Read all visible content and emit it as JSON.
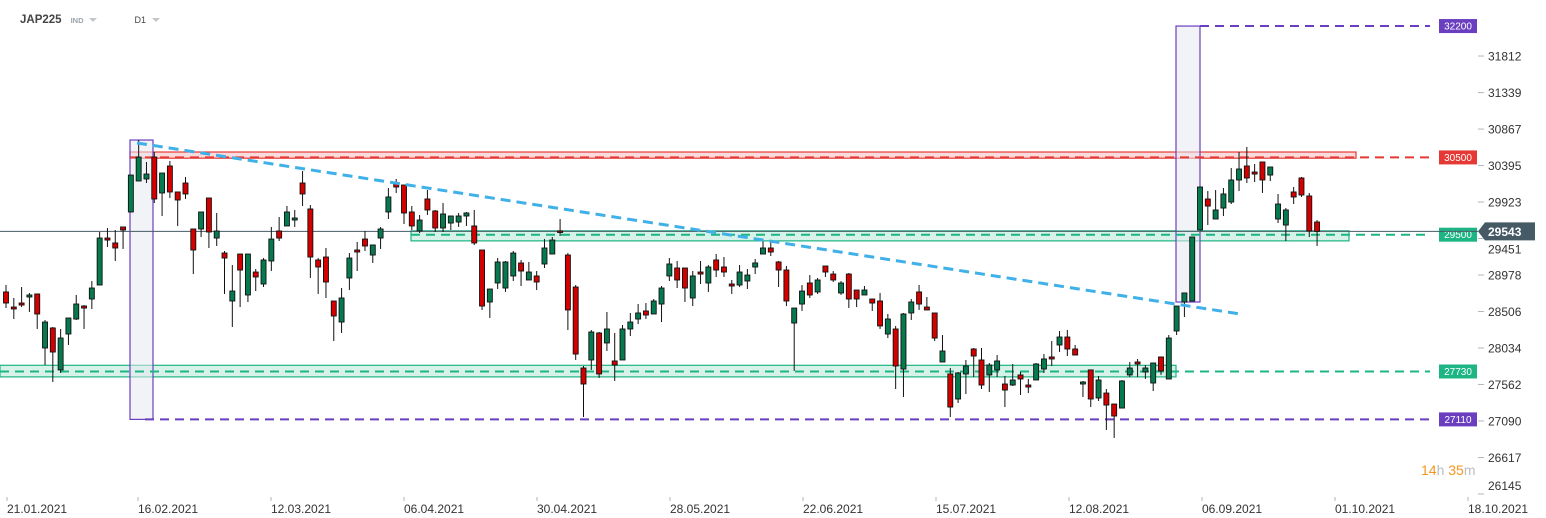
{
  "header": {
    "symbol": "JAP225",
    "instrument_type": "IND",
    "timeframe": "D1"
  },
  "countdown": {
    "hours": "14",
    "hours_unit": "h",
    "minutes": "35",
    "minutes_unit": "m"
  },
  "colors": {
    "up": "#067a4f",
    "down": "#d40000",
    "level_red": "#e53935",
    "level_green": "#1db584",
    "level_purple": "#6a3fbf",
    "trendline": "#3fb0e8",
    "current_price_bg": "#455a64"
  },
  "chart_data": {
    "type": "candlestick",
    "ylim": [
      26000,
      32300
    ],
    "y_ticks": [
      "31812",
      "31339",
      "30867",
      "30395",
      "29923",
      "29451",
      "28978",
      "28506",
      "28034",
      "27562",
      "27090",
      "26617",
      "26145"
    ],
    "x_ticks": [
      "21.01.2021",
      "16.02.2021",
      "12.03.2021",
      "06.04.2021",
      "30.04.2021",
      "28.05.2021",
      "22.06.2021",
      "15.07.2021",
      "12.08.2021",
      "06.09.2021",
      "01.10.2021",
      "18.10.2021"
    ],
    "current_price": "29543",
    "levels": [
      {
        "value": 32200,
        "label": "32200",
        "color": "#6a3fbf"
      },
      {
        "value": 30500,
        "label": "30500",
        "color": "#e53935"
      },
      {
        "value": 29500,
        "label": "29500",
        "color": "#1db584"
      },
      {
        "value": 27730,
        "label": "27730",
        "color": "#1db584"
      },
      {
        "value": 27110,
        "label": "27110",
        "color": "#6a3fbf"
      }
    ],
    "zones": [
      {
        "from": 30490,
        "to": 30570,
        "color": "#e53935"
      },
      {
        "from": 29420,
        "to": 29550,
        "color": "#1db584"
      },
      {
        "from": 27660,
        "to": 27810,
        "color": "#1db584"
      }
    ],
    "ranges": [
      {
        "high": 30725,
        "low": 27110
      },
      {
        "high": 32200,
        "low": 28629
      }
    ],
    "trendline": {
      "start": 30687,
      "end": 28474
    },
    "ohlc": [
      [
        28759,
        28849,
        28551,
        28616
      ],
      [
        28564,
        28681,
        28409,
        28539
      ],
      [
        28616,
        28823,
        28564,
        28590
      ],
      [
        28694,
        28746,
        28500,
        28720
      ],
      [
        28733,
        28733,
        28280,
        28474
      ],
      [
        28034,
        28396,
        27814,
        28370
      ],
      [
        28293,
        28306,
        27594,
        27982
      ],
      [
        27750,
        28280,
        27711,
        28163
      ],
      [
        28215,
        28422,
        28073,
        28422
      ],
      [
        28409,
        28720,
        28396,
        28603
      ],
      [
        28577,
        28590,
        28280,
        28551
      ],
      [
        28668,
        28901,
        28539,
        28810
      ],
      [
        28849,
        29535,
        28849,
        29457
      ],
      [
        29457,
        29587,
        29341,
        29431
      ],
      [
        29393,
        29561,
        29160,
        29328
      ],
      [
        29600,
        29600,
        29315,
        29561
      ],
      [
        29794,
        30272,
        29794,
        30272
      ],
      [
        30195,
        30725,
        30195,
        30505
      ],
      [
        30221,
        30441,
        30169,
        30285
      ],
      [
        30505,
        30570,
        29910,
        29962
      ],
      [
        30040,
        30298,
        29742,
        30298
      ],
      [
        30389,
        30454,
        29975,
        30053
      ],
      [
        30053,
        30053,
        29613,
        29949
      ],
      [
        30169,
        30247,
        29962,
        30027
      ],
      [
        29574,
        29574,
        28991,
        29302
      ],
      [
        29574,
        29794,
        29470,
        29794
      ],
      [
        29975,
        29975,
        29328,
        29535
      ],
      [
        29457,
        29781,
        29354,
        29548
      ],
      [
        29263,
        29289,
        28733,
        29198
      ],
      [
        28642,
        29108,
        28306,
        28771
      ],
      [
        29250,
        29250,
        28564,
        29043
      ],
      [
        28720,
        29250,
        28629,
        29250
      ],
      [
        29017,
        29056,
        28771,
        28953
      ],
      [
        28862,
        29198,
        28823,
        29173
      ],
      [
        29160,
        29600,
        29030,
        29444
      ],
      [
        29548,
        29729,
        29418,
        29457
      ],
      [
        29613,
        29871,
        29613,
        29794
      ],
      [
        29690,
        29820,
        29600,
        29716
      ],
      [
        30169,
        30324,
        29871,
        30027
      ],
      [
        29833,
        29884,
        28940,
        29211
      ],
      [
        29173,
        29198,
        28733,
        29082
      ],
      [
        29211,
        29328,
        28681,
        28888
      ],
      [
        28642,
        28642,
        28124,
        28448
      ],
      [
        28370,
        28810,
        28228,
        28681
      ],
      [
        28940,
        29263,
        28784,
        29198
      ],
      [
        29302,
        29406,
        29030,
        29276
      ],
      [
        29444,
        29548,
        29289,
        29354
      ],
      [
        29237,
        29367,
        29134,
        29367
      ],
      [
        29457,
        29600,
        29315,
        29574
      ],
      [
        29794,
        30104,
        29703,
        29988
      ],
      [
        30169,
        30221,
        30040,
        30117
      ],
      [
        30143,
        30143,
        29638,
        29781
      ],
      [
        29794,
        29871,
        29561,
        29613
      ],
      [
        29548,
        29755,
        29522,
        29690
      ],
      [
        29962,
        30078,
        29755,
        29820
      ],
      [
        29807,
        29820,
        29535,
        29587
      ],
      [
        29587,
        29910,
        29535,
        29768
      ],
      [
        29651,
        29742,
        29561,
        29742
      ],
      [
        29664,
        29781,
        29600,
        29742
      ],
      [
        29742,
        29794,
        29613,
        29781
      ],
      [
        29613,
        29820,
        29367,
        29393
      ],
      [
        29302,
        29302,
        28526,
        28577
      ],
      [
        28629,
        28797,
        28422,
        28797
      ],
      [
        28875,
        29198,
        28797,
        29147
      ],
      [
        28810,
        29160,
        28759,
        29147
      ],
      [
        28966,
        29289,
        28901,
        29263
      ],
      [
        29134,
        29173,
        28836,
        29030
      ],
      [
        28914,
        29147,
        28914,
        29017
      ],
      [
        28966,
        29030,
        28784,
        28888
      ],
      [
        29121,
        29444,
        29069,
        29328
      ],
      [
        29250,
        29470,
        29250,
        29431
      ],
      [
        29548,
        29703,
        29483,
        29535
      ],
      [
        29237,
        29263,
        28267,
        28526
      ],
      [
        28823,
        28849,
        27879,
        27956
      ],
      [
        27775,
        27801,
        27141,
        27568
      ],
      [
        27879,
        28267,
        27750,
        28241
      ],
      [
        28228,
        28241,
        27646,
        27698
      ],
      [
        28099,
        28500,
        27995,
        28280
      ],
      [
        27866,
        28228,
        27607,
        27814
      ],
      [
        27879,
        28331,
        27879,
        28280
      ],
      [
        28280,
        28487,
        28189,
        28370
      ],
      [
        28409,
        28603,
        28344,
        28487
      ],
      [
        28513,
        28616,
        28409,
        28461
      ],
      [
        28474,
        28668,
        28474,
        28642
      ],
      [
        28603,
        28836,
        28370,
        28810
      ],
      [
        28966,
        29198,
        28901,
        29121
      ],
      [
        29069,
        29160,
        28810,
        28914
      ],
      [
        29069,
        29069,
        28629,
        28810
      ],
      [
        28681,
        29030,
        28577,
        28966
      ],
      [
        29017,
        29160,
        28862,
        28991
      ],
      [
        28875,
        29108,
        28759,
        29082
      ],
      [
        29173,
        29250,
        28953,
        29043
      ],
      [
        29082,
        29211,
        28953,
        29017
      ],
      [
        28862,
        28914,
        28733,
        28836
      ],
      [
        28849,
        29108,
        28823,
        29017
      ],
      [
        28901,
        29056,
        28797,
        28978
      ],
      [
        29082,
        29186,
        28991,
        29134
      ],
      [
        29250,
        29418,
        29250,
        29328
      ],
      [
        29328,
        29406,
        29224,
        29276
      ],
      [
        29147,
        29160,
        28823,
        29043
      ],
      [
        29043,
        29095,
        28577,
        28642
      ],
      [
        28357,
        28551,
        27737,
        28551
      ],
      [
        28603,
        28849,
        28513,
        28771
      ],
      [
        28875,
        28978,
        28681,
        28720
      ],
      [
        28759,
        28940,
        28733,
        28914
      ],
      [
        29095,
        29095,
        28953,
        29017
      ],
      [
        28991,
        29030,
        28888,
        28914
      ],
      [
        28746,
        28901,
        28720,
        28875
      ],
      [
        28991,
        29004,
        28551,
        28668
      ],
      [
        28784,
        28784,
        28564,
        28668
      ],
      [
        28720,
        28836,
        28720,
        28784
      ],
      [
        28668,
        28668,
        28513,
        28616
      ],
      [
        28642,
        28746,
        28280,
        28319
      ],
      [
        28215,
        28474,
        28163,
        28409
      ],
      [
        28280,
        28319,
        27503,
        27801
      ],
      [
        27762,
        28487,
        27400,
        28474
      ],
      [
        28487,
        28668,
        28396,
        28629
      ],
      [
        28759,
        28849,
        28526,
        28603
      ],
      [
        28564,
        28694,
        28526,
        28526
      ],
      [
        28487,
        28487,
        28124,
        28163
      ],
      [
        27853,
        28202,
        27853,
        27995
      ],
      [
        27698,
        27775,
        27141,
        27270
      ],
      [
        27374,
        27724,
        27322,
        27711
      ],
      [
        27698,
        27879,
        27438,
        27801
      ],
      [
        28021,
        28034,
        27659,
        27930
      ],
      [
        27879,
        28034,
        27503,
        27555
      ],
      [
        27685,
        27840,
        27464,
        27814
      ],
      [
        27750,
        27943,
        27659,
        27866
      ],
      [
        27568,
        27672,
        27270,
        27490
      ],
      [
        27555,
        27827,
        27542,
        27620
      ],
      [
        27685,
        27724,
        27426,
        27633
      ],
      [
        27555,
        27633,
        27451,
        27529
      ],
      [
        27620,
        27840,
        27620,
        27827
      ],
      [
        27762,
        27956,
        27711,
        27892
      ],
      [
        27918,
        28124,
        27801,
        27892
      ],
      [
        28073,
        28254,
        27982,
        28176
      ],
      [
        28176,
        28267,
        27930,
        28021
      ],
      [
        28021,
        28073,
        27943,
        27943
      ],
      [
        27568,
        27607,
        27400,
        27594
      ],
      [
        27750,
        27750,
        27270,
        27374
      ],
      [
        27387,
        27672,
        27348,
        27620
      ],
      [
        27451,
        27503,
        26973,
        27296
      ],
      [
        27309,
        27309,
        26870,
        27154
      ],
      [
        27257,
        27620,
        27257,
        27607
      ],
      [
        27685,
        27853,
        27659,
        27775
      ],
      [
        27853,
        27892,
        27659,
        27827
      ],
      [
        27724,
        27814,
        27633,
        27775
      ],
      [
        27581,
        27840,
        27477,
        27840
      ],
      [
        27918,
        27918,
        27685,
        27737
      ],
      [
        27633,
        28202,
        27633,
        28163
      ],
      [
        28254,
        28577,
        28202,
        28577
      ],
      [
        28629,
        28746,
        28435,
        28746
      ],
      [
        28642,
        29470,
        28642,
        29470
      ],
      [
        29561,
        30117,
        29561,
        30117
      ],
      [
        29962,
        30065,
        29625,
        29871
      ],
      [
        29703,
        30078,
        29703,
        29820
      ],
      [
        29845,
        30104,
        29742,
        30027
      ],
      [
        29923,
        30363,
        29897,
        30208
      ],
      [
        30208,
        30570,
        30065,
        30350
      ],
      [
        30389,
        30635,
        30169,
        30234
      ],
      [
        30311,
        30415,
        30182,
        30285
      ],
      [
        30441,
        30441,
        30040,
        30208
      ],
      [
        30272,
        30376,
        30195,
        30376
      ],
      [
        29703,
        30027,
        29651,
        29897
      ],
      [
        29625,
        29845,
        29418,
        29820
      ],
      [
        30053,
        30117,
        29897,
        29988
      ],
      [
        30234,
        30247,
        29988,
        30014
      ],
      [
        30001,
        30040,
        29470,
        29548
      ],
      [
        29664,
        29690,
        29354,
        29543
      ]
    ]
  }
}
